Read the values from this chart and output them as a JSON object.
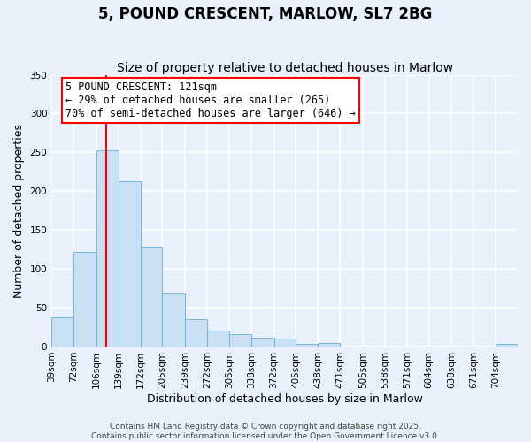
{
  "title": "5, POUND CRESCENT, MARLOW, SL7 2BG",
  "subtitle": "Size of property relative to detached houses in Marlow",
  "xlabel": "Distribution of detached houses by size in Marlow",
  "ylabel": "Number of detached properties",
  "bar_color": "#c9dff2",
  "bar_edge_color": "#6aaed6",
  "background_color": "#e8f1fb",
  "plot_bg_color": "#e8f1fb",
  "grid_color": "#ffffff",
  "bin_labels": [
    "39sqm",
    "72sqm",
    "106sqm",
    "139sqm",
    "172sqm",
    "205sqm",
    "239sqm",
    "272sqm",
    "305sqm",
    "338sqm",
    "372sqm",
    "405sqm",
    "438sqm",
    "471sqm",
    "505sqm",
    "538sqm",
    "571sqm",
    "604sqm",
    "638sqm",
    "671sqm",
    "704sqm"
  ],
  "bar_heights": [
    38,
    122,
    253,
    213,
    129,
    68,
    35,
    20,
    16,
    11,
    10,
    3,
    4,
    0,
    0,
    0,
    0,
    0,
    0,
    0,
    3
  ],
  "bin_edges": [
    39,
    72,
    106,
    139,
    172,
    205,
    239,
    272,
    305,
    338,
    372,
    405,
    438,
    471,
    505,
    538,
    571,
    604,
    638,
    671,
    704,
    737
  ],
  "red_line_x": 121,
  "ylim": [
    0,
    350
  ],
  "yticks": [
    0,
    50,
    100,
    150,
    200,
    250,
    300,
    350
  ],
  "annotation_line1": "5 POUND CRESCENT: 121sqm",
  "annotation_line2": "← 29% of detached houses are smaller (265)",
  "annotation_line3": "70% of semi-detached houses are larger (646) →",
  "footer_line1": "Contains HM Land Registry data © Crown copyright and database right 2025.",
  "footer_line2": "Contains public sector information licensed under the Open Government Licence v3.0.",
  "title_fontsize": 12,
  "subtitle_fontsize": 10,
  "axis_label_fontsize": 9,
  "tick_fontsize": 7.5,
  "annotation_fontsize": 8.5,
  "footer_fontsize": 6.5
}
